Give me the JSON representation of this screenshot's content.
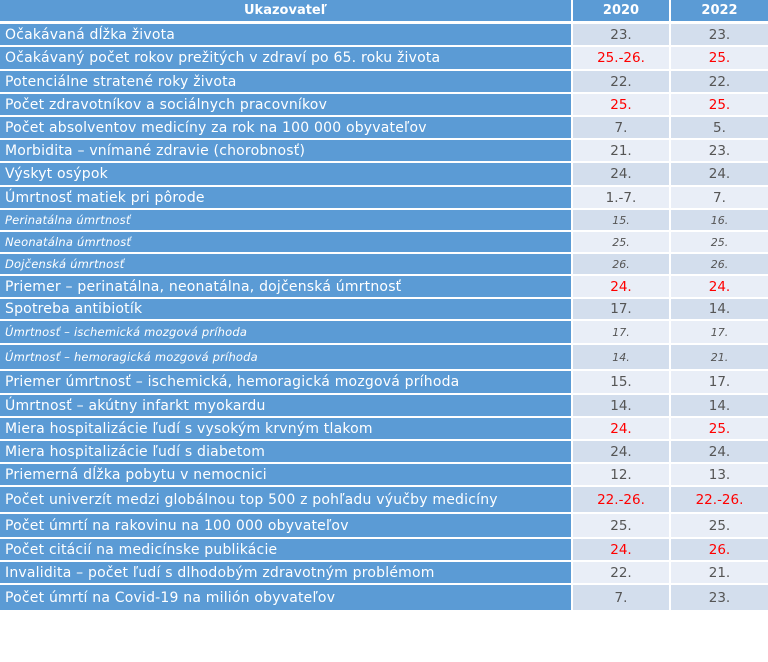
{
  "header": {
    "indicator": "Ukazovateľ",
    "year1": "2020",
    "year2": "2022"
  },
  "colors": {
    "label_bg": "#5b9bd5",
    "highlight": "#ff0000"
  },
  "rows": [
    {
      "label": "Očakávaná dĺžka života",
      "v2020": "23.",
      "v2022": "23.",
      "red2020": false,
      "red2022": false,
      "sub": false
    },
    {
      "label": "Očakávaný počet rokov prežitých v zdraví po 65. roku života",
      "v2020": "25.-26.",
      "v2022": "25.",
      "red2020": true,
      "red2022": true,
      "sub": false
    },
    {
      "label": "Potenciálne stratené roky života",
      "v2020": "22.",
      "v2022": "22.",
      "red2020": false,
      "red2022": false,
      "sub": false
    },
    {
      "label": "Počet zdravotníkov a sociálnych pracovníkov",
      "v2020": "25.",
      "v2022": "25.",
      "red2020": true,
      "red2022": true,
      "sub": false
    },
    {
      "label": "Počet absolventov medicíny za rok na 100 000 obyvateľov",
      "v2020": "7.",
      "v2022": "5.",
      "red2020": false,
      "red2022": false,
      "sub": false
    },
    {
      "label": "Morbidita – vnímané zdravie (chorobnosť)",
      "v2020": "21.",
      "v2022": "23.",
      "red2020": false,
      "red2022": false,
      "sub": false
    },
    {
      "label": "Výskyt osýpok",
      "v2020": "24.",
      "v2022": "24.",
      "red2020": false,
      "red2022": false,
      "sub": false
    },
    {
      "label": "Úmrtnosť matiek pri pôrode",
      "v2020": "1.-7.",
      "v2022": "7.",
      "red2020": false,
      "red2022": false,
      "sub": false
    },
    {
      "label": "Perinatálna úmrtnosť",
      "v2020": "15.",
      "v2022": "16.",
      "red2020": false,
      "red2022": false,
      "sub": true
    },
    {
      "label": "Neonatálna úmrtnosť",
      "v2020": "25.",
      "v2022": "25.",
      "red2020": false,
      "red2022": false,
      "sub": true
    },
    {
      "label": "Dojčenská úmrtnosť",
      "v2020": "26.",
      "v2022": "26.",
      "red2020": false,
      "red2022": false,
      "sub": true
    },
    {
      "label": "Priemer – perinatálna, neonatálna, dojčenská úmrtnosť",
      "v2020": "24.",
      "v2022": "24.",
      "red2020": true,
      "red2022": true,
      "sub": false
    },
    {
      "label": "Spotreba antibiotík",
      "v2020": "17.",
      "v2022": "14.",
      "red2020": false,
      "red2022": false,
      "sub": false
    },
    {
      "label": "Úmrtnosť – ischemická mozgová príhoda",
      "v2020": "17.",
      "v2022": "17.",
      "red2020": false,
      "red2022": false,
      "sub": true
    },
    {
      "label": "Úmrtnosť – hemoragická mozgová príhoda",
      "v2020": "14.",
      "v2022": "21.",
      "red2020": false,
      "red2022": false,
      "sub": true
    },
    {
      "label": "Priemer úmrtnosť – ischemická, hemoragická mozgová príhoda",
      "v2020": "15.",
      "v2022": "17.",
      "red2020": false,
      "red2022": false,
      "sub": false
    },
    {
      "label": "Úmrtnosť – akútny infarkt myokardu",
      "v2020": "14.",
      "v2022": "14.",
      "red2020": false,
      "red2022": false,
      "sub": false
    },
    {
      "label": "Miera hospitalizácie ľudí s vysokým krvným tlakom",
      "v2020": "24.",
      "v2022": "25.",
      "red2020": true,
      "red2022": true,
      "sub": false
    },
    {
      "label": "Miera hospitalizácie ľudí s diabetom",
      "v2020": "24.",
      "v2022": "24.",
      "red2020": false,
      "red2022": false,
      "sub": false
    },
    {
      "label": "Priemerná dĺžka pobytu v nemocnici",
      "v2020": "12.",
      "v2022": "13.",
      "red2020": false,
      "red2022": false,
      "sub": false
    },
    {
      "label": "Počet univerzít medzi globálnou top 500 z pohľadu výučby medicíny",
      "v2020": "22.-26.",
      "v2022": "22.-26.",
      "red2020": true,
      "red2022": true,
      "sub": false
    },
    {
      "label": "Počet úmrtí na rakovinu na 100 000 obyvateľov",
      "v2020": "25.",
      "v2022": "25.",
      "red2020": false,
      "red2022": false,
      "sub": false
    },
    {
      "label": "Počet citácií na medicínske publikácie",
      "v2020": "24.",
      "v2022": "26.",
      "red2020": true,
      "red2022": true,
      "sub": false
    },
    {
      "label": "Invalidita – počet ľudí s dlhodobým zdravotným problémom",
      "v2020": "22.",
      "v2022": "21.",
      "red2020": false,
      "red2022": false,
      "sub": false
    },
    {
      "label": "Počet úmrtí na Covid-19 na milión obyvateľov",
      "v2020": "7.",
      "v2022": "23.",
      "red2020": false,
      "red2022": false,
      "sub": false
    }
  ]
}
